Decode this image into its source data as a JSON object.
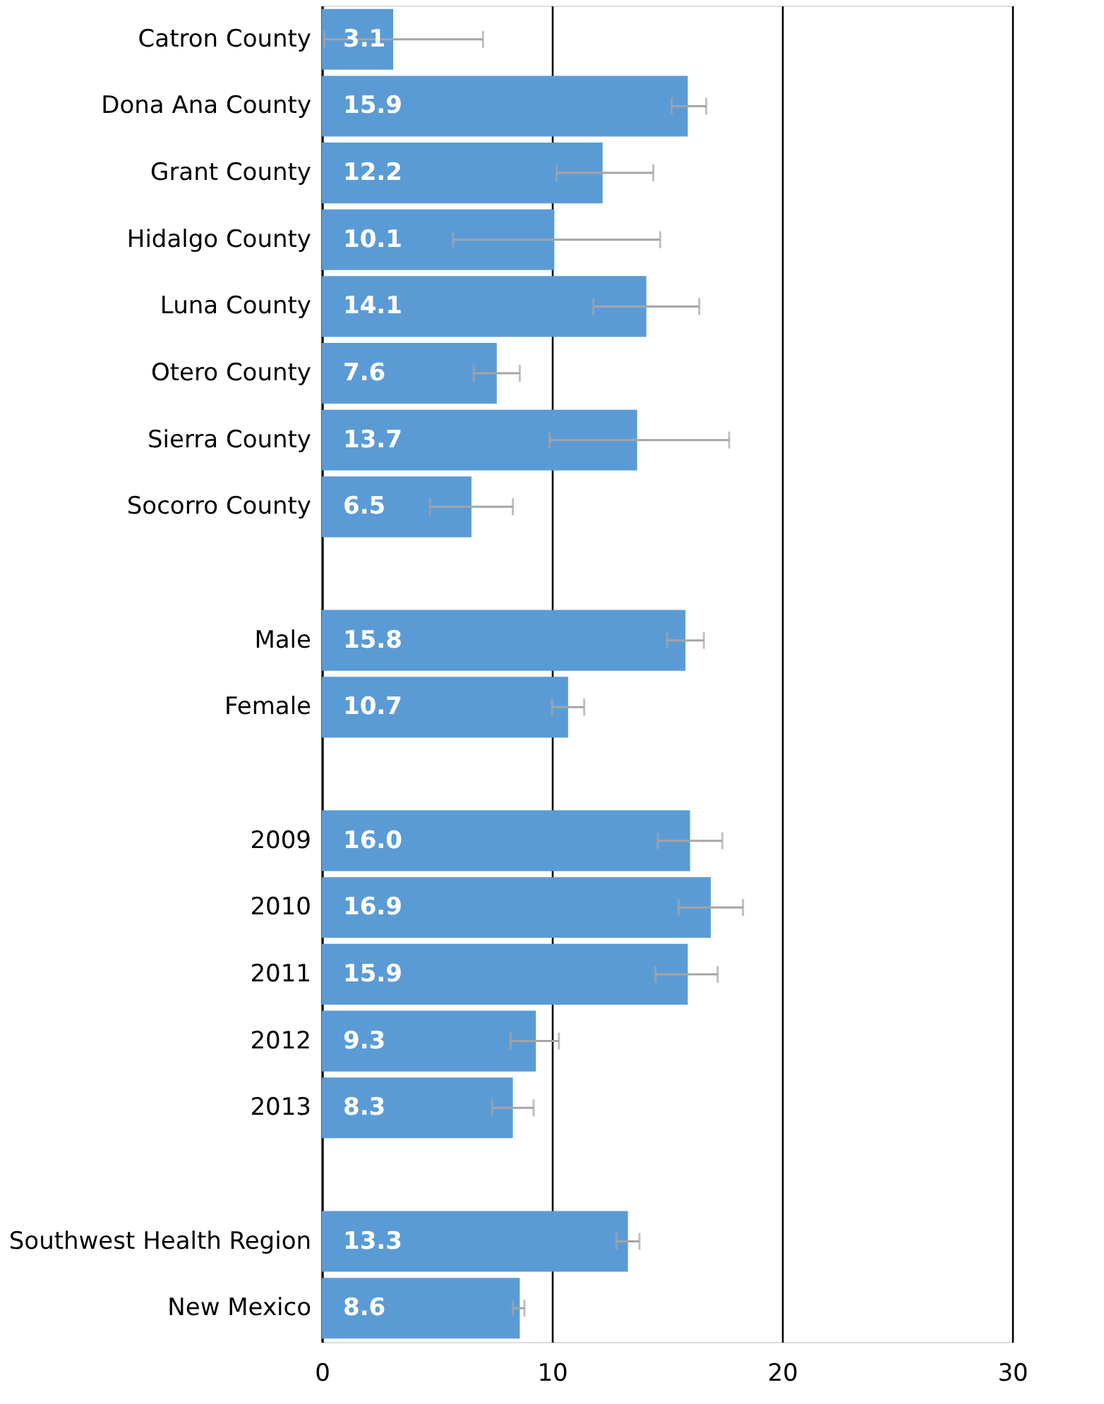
{
  "chart_data": {
    "type": "bar",
    "orientation": "horizontal",
    "categories": [
      "Catron County",
      "Dona Ana County",
      "Grant County",
      "Hidalgo County",
      "Luna County",
      "Otero County",
      "Sierra County",
      "Socorro County",
      null,
      "Male",
      "Female",
      null,
      "2009",
      "2010",
      "2011",
      "2012",
      "2013",
      null,
      "Southwest Health Region",
      "New Mexico"
    ],
    "values": [
      3.1,
      15.9,
      12.2,
      10.1,
      14.1,
      7.6,
      13.7,
      6.5,
      null,
      15.8,
      10.7,
      null,
      16.0,
      16.9,
      15.9,
      9.3,
      8.3,
      null,
      13.3,
      8.6
    ],
    "errors": [
      [
        0.1,
        7.0
      ],
      [
        15.2,
        16.7
      ],
      [
        10.2,
        14.4
      ],
      [
        5.7,
        14.7
      ],
      [
        11.8,
        16.4
      ],
      [
        6.6,
        8.6
      ],
      [
        9.9,
        17.7
      ],
      [
        4.7,
        8.3
      ],
      null,
      [
        15.0,
        16.6
      ],
      [
        10.0,
        11.4
      ],
      null,
      [
        14.6,
        17.4
      ],
      [
        15.5,
        18.3
      ],
      [
        14.5,
        17.2
      ],
      [
        8.2,
        10.3
      ],
      [
        7.4,
        9.2
      ],
      null,
      [
        12.8,
        13.8
      ],
      [
        8.3,
        8.8
      ]
    ],
    "value_labels": [
      "3.1",
      "15.9",
      "12.2",
      "10.1",
      "14.1",
      "7.6",
      "13.7",
      "6.5",
      null,
      "15.8",
      "10.7",
      null,
      "16.0",
      "16.9",
      "15.9",
      "9.3",
      "8.3",
      null,
      "13.3",
      "8.6"
    ],
    "color": "#5b9bd5",
    "xlim": [
      0,
      30
    ],
    "xticks": [
      0,
      10,
      20,
      30
    ],
    "grid": "x"
  }
}
